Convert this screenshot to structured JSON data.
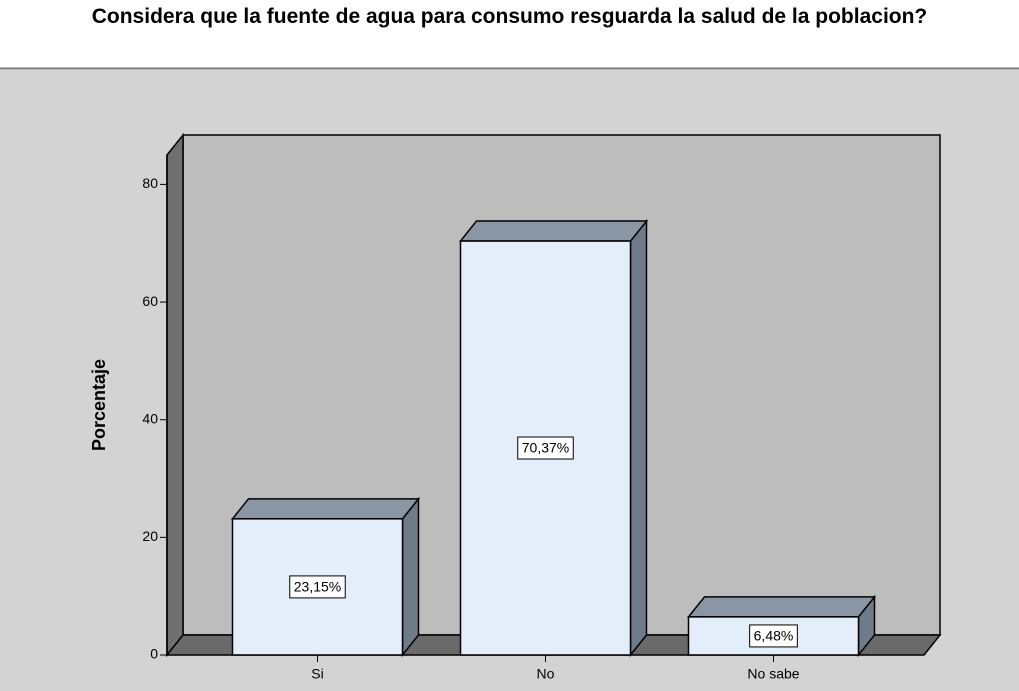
{
  "chart_data": {
    "type": "bar",
    "title": "Considera que la fuente de agua para consumo resguarda la salud de la poblacion?",
    "y_label": "Porcentaje",
    "categories": [
      "Si",
      "No",
      "No sabe"
    ],
    "values": [
      23.15,
      70.37,
      6.48
    ],
    "value_labels": [
      "23,15%",
      "70,37%",
      "6,48%"
    ],
    "color": "#e3eefa",
    "ylim": [
      0,
      85
    ],
    "yticks": [
      0,
      20,
      40,
      60,
      80
    ],
    "grid": false
  }
}
